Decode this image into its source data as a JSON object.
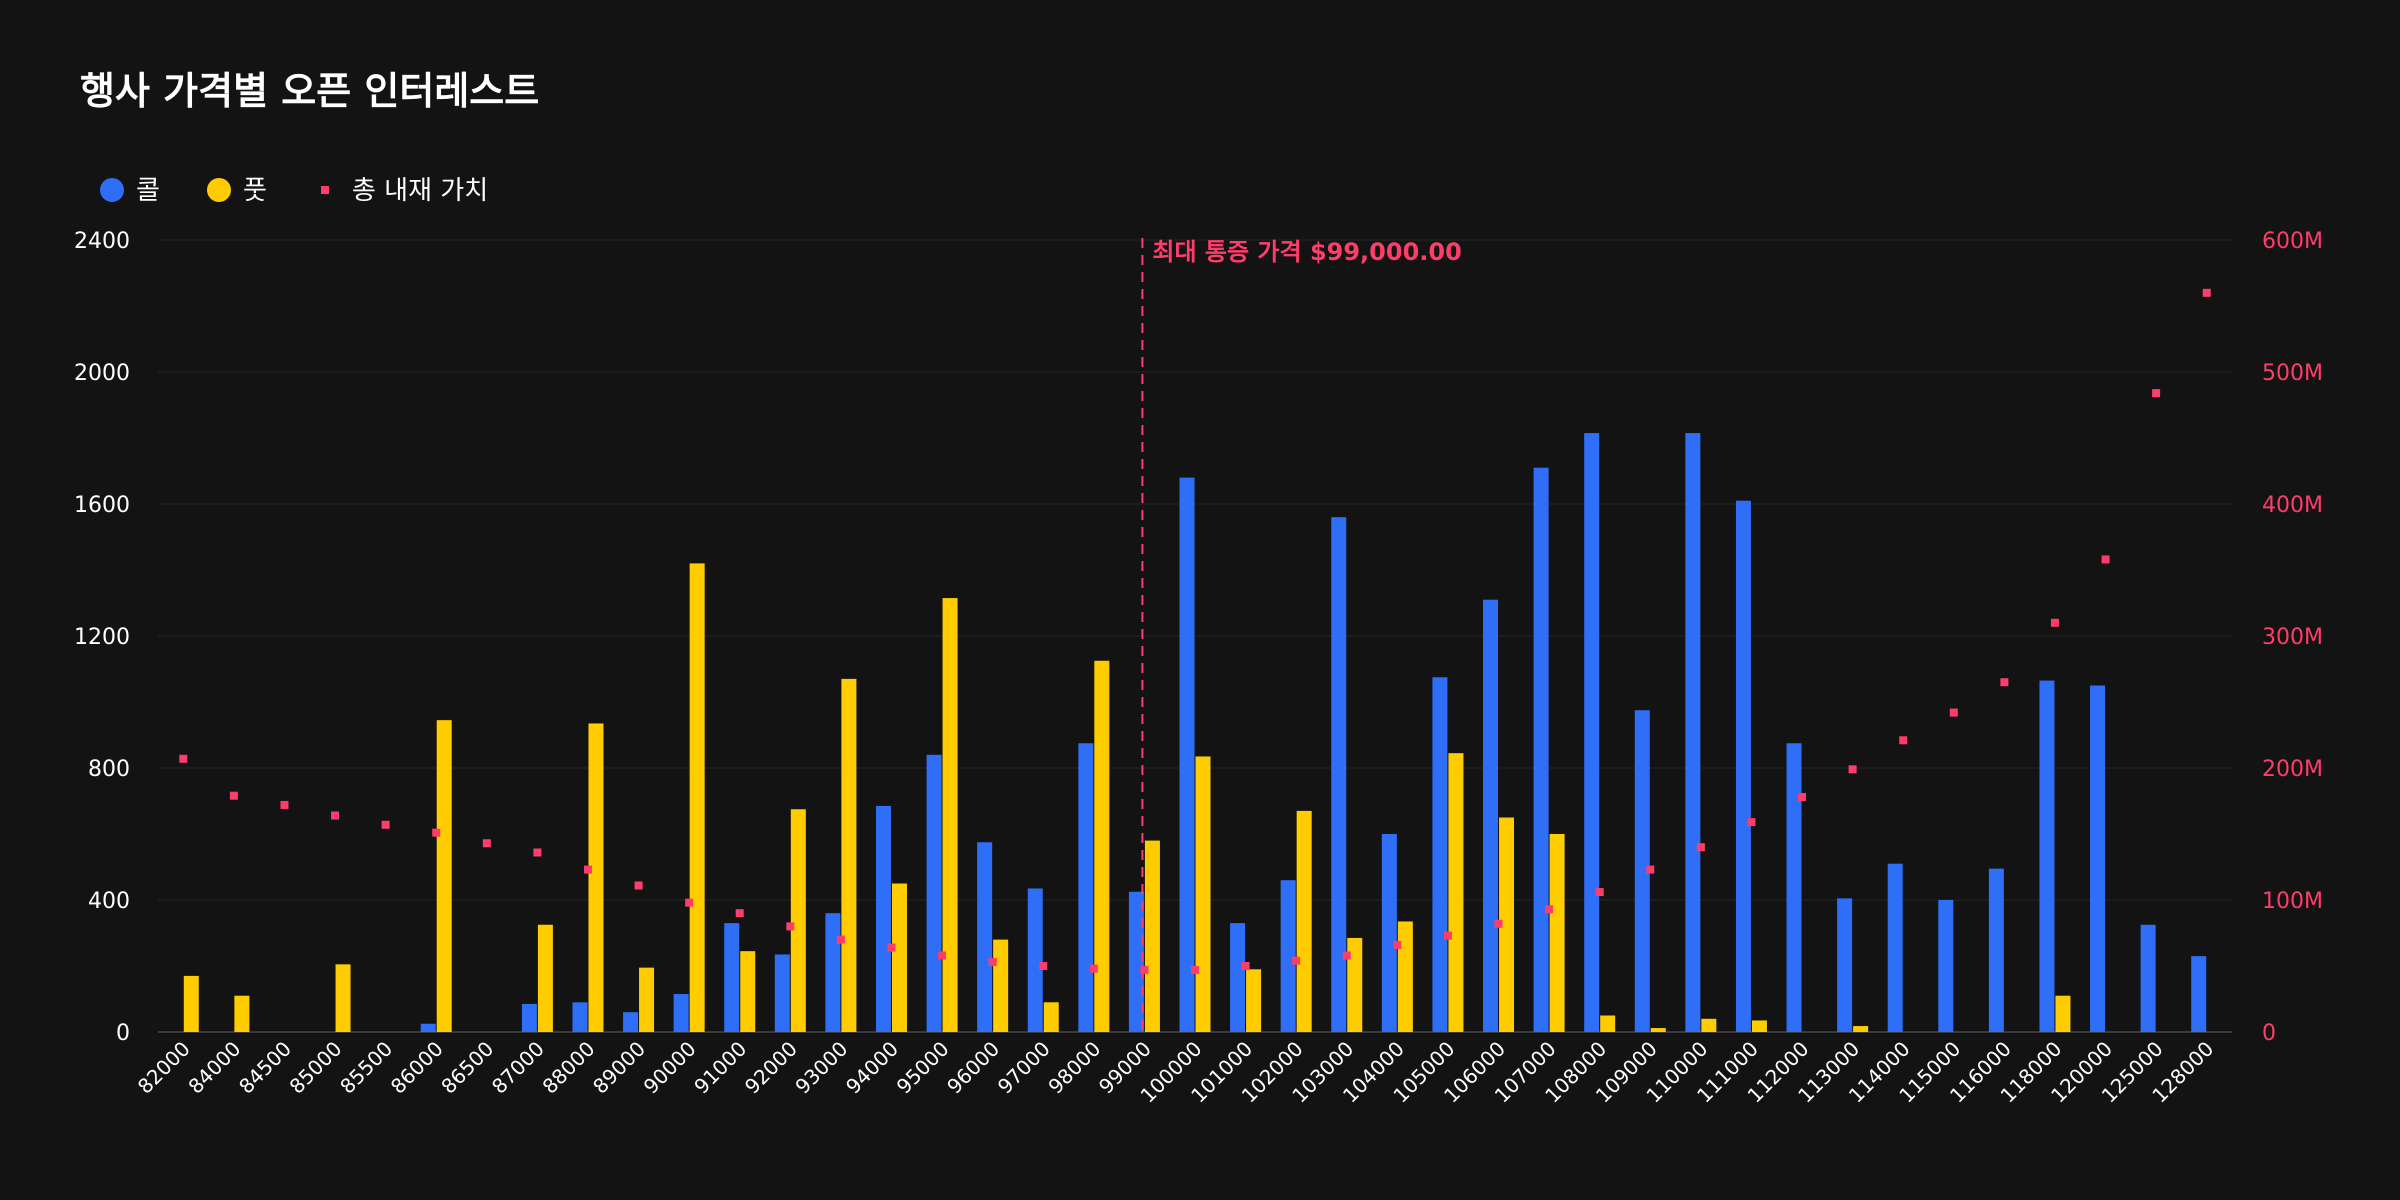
{
  "chart_data": {
    "type": "bar",
    "title": "행사 가격별 오픈 인터레스트",
    "legend": [
      {
        "label": "콜",
        "shape": "circle",
        "color": "#2f6ef7"
      },
      {
        "label": "풋",
        "shape": "circle",
        "color": "#ffcc00"
      },
      {
        "label": "총 내재 가치",
        "shape": "square",
        "color": "#ff3d6a"
      }
    ],
    "categories": [
      "82000",
      "84000",
      "84500",
      "85000",
      "85500",
      "86000",
      "86500",
      "87000",
      "88000",
      "89000",
      "90000",
      "91000",
      "92000",
      "93000",
      "94000",
      "95000",
      "96000",
      "97000",
      "98000",
      "99000",
      "100000",
      "101000",
      "102000",
      "103000",
      "104000",
      "105000",
      "106000",
      "107000",
      "108000",
      "109000",
      "110000",
      "111000",
      "112000",
      "113000",
      "114000",
      "115000",
      "116000",
      "118000",
      "120000",
      "125000",
      "128000"
    ],
    "series": [
      {
        "name": "콜",
        "axis": "left",
        "color": "#2f6ef7",
        "values": [
          0,
          0,
          0,
          0,
          0,
          25,
          0,
          85,
          90,
          60,
          115,
          330,
          235,
          360,
          685,
          840,
          575,
          435,
          875,
          425,
          1680,
          330,
          460,
          1560,
          600,
          1075,
          1310,
          1710,
          1815,
          975,
          1815,
          1610,
          875,
          405,
          510,
          400,
          495,
          1065,
          1050,
          325,
          230
        ]
      },
      {
        "name": "풋",
        "axis": "left",
        "color": "#ffcc00",
        "values": [
          170,
          110,
          0,
          205,
          0,
          945,
          0,
          325,
          935,
          195,
          1420,
          245,
          675,
          1070,
          450,
          1315,
          280,
          90,
          1125,
          580,
          835,
          190,
          670,
          285,
          335,
          845,
          650,
          600,
          50,
          12,
          40,
          35,
          0,
          18,
          0,
          0,
          0,
          110,
          0,
          0,
          0
        ]
      },
      {
        "name": "총 내재 가치",
        "axis": "right",
        "color": "#ff3d6a",
        "values": [
          207,
          179,
          172,
          164,
          157,
          151,
          143,
          136,
          123,
          111,
          98,
          90,
          80,
          70,
          64,
          58,
          53,
          50,
          48,
          47,
          47,
          50,
          54,
          58,
          66,
          73,
          82,
          93,
          106,
          123,
          140,
          159,
          178,
          199,
          221,
          242,
          265,
          310,
          358,
          484,
          560
        ]
      }
    ],
    "y_left": {
      "ticks": [
        "0",
        "400",
        "800",
        "1200",
        "1600",
        "2000",
        "2400"
      ],
      "ylim": [
        0,
        2400
      ]
    },
    "y_right": {
      "ticks": [
        "0",
        "100M",
        "200M",
        "300M",
        "400M",
        "500M",
        "600M"
      ],
      "ylim": [
        0,
        600
      ],
      "unit": "M"
    },
    "annotation": {
      "category": "99000",
      "label": "최대 통증 가격 $99,000.00",
      "color": "#ff3d6a"
    },
    "grid": true,
    "legend_position": "top-left"
  }
}
